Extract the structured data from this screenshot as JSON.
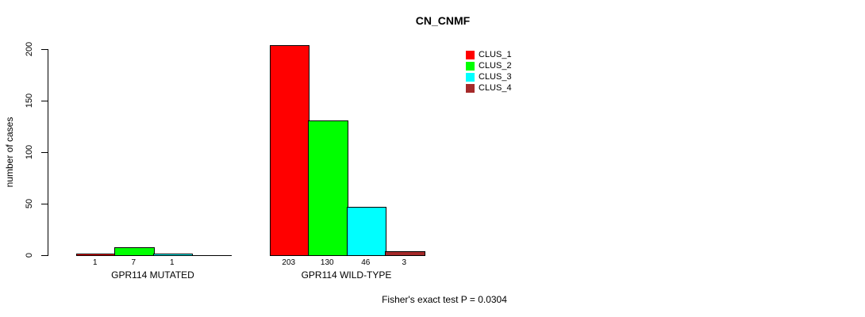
{
  "title": "CN_CNMF",
  "chart_data": {
    "type": "bar",
    "title": "CN_CNMF",
    "ylabel": "number of cases",
    "ylim": [
      0,
      200
    ],
    "yticks": [
      0,
      50,
      100,
      150,
      200
    ],
    "grid": false,
    "legend_position": "top-right",
    "series_names": [
      "CLUS_1",
      "CLUS_2",
      "CLUS_3",
      "CLUS_4"
    ],
    "colors": [
      "#FF0000",
      "#00FF00",
      "#00FFFF",
      "#A52A2A"
    ],
    "groups": [
      {
        "label": "GPR114 MUTATED",
        "values": [
          1,
          7,
          1,
          0
        ],
        "bar_labels": [
          "1",
          "7",
          "1",
          ""
        ]
      },
      {
        "label": "GPR114 WILD-TYPE",
        "values": [
          203,
          130,
          46,
          3
        ],
        "bar_labels": [
          "203",
          "130",
          "46",
          "3"
        ]
      }
    ],
    "annotation": "Fisher's exact test P = 0.0304"
  }
}
